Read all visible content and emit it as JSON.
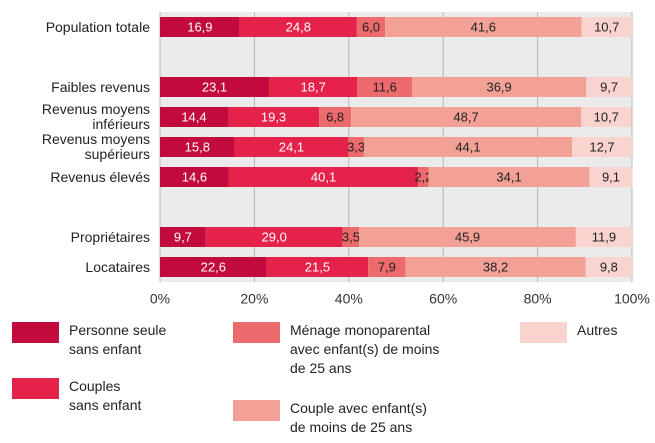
{
  "chart_data": {
    "type": "stacked-bar-horizontal",
    "categories": [
      "Population totale",
      null,
      "Faibles revenus",
      "Revenus moyens\ninférieurs",
      "Revenus moyens\nsupérieurs",
      "Revenus élevés",
      null,
      "Propriétaires",
      "Locataires"
    ],
    "series": [
      {
        "name": "Personne seule\nsans enfant",
        "color": "#c20a3c",
        "values": [
          16.9,
          null,
          23.1,
          14.4,
          15.8,
          14.6,
          null,
          9.7,
          22.6
        ],
        "value_labels": [
          "16,9",
          null,
          "23,1",
          "14,4",
          "15,8",
          "14,6",
          null,
          "9,7",
          "22,6"
        ]
      },
      {
        "name": "Couples\nsans enfant",
        "color": "#e5224a",
        "values": [
          24.8,
          null,
          18.7,
          19.3,
          24.1,
          40.1,
          null,
          29.0,
          21.5
        ],
        "value_labels": [
          "24,8",
          null,
          "18,7",
          "19,3",
          "24,1",
          "40,1",
          null,
          "29,0",
          "21,5"
        ]
      },
      {
        "name": "Ménage monoparental\navec enfant(s) de moins\nde 25 ans",
        "color": "#ec6a6c",
        "values": [
          6.0,
          null,
          11.6,
          6.8,
          3.3,
          2.2,
          null,
          3.5,
          7.9
        ],
        "value_labels": [
          "6,0",
          null,
          "11,6",
          "6,8",
          "3,3",
          "2,2",
          null,
          "3,5",
          "7,9"
        ]
      },
      {
        "name": "Couple avec enfant(s)\nde moins de 25 ans",
        "color": "#f3a096",
        "values": [
          41.6,
          null,
          36.9,
          48.7,
          44.1,
          34.1,
          null,
          45.9,
          38.2
        ],
        "value_labels": [
          "41,6",
          null,
          "36,9",
          "48,7",
          "44,1",
          "34,1",
          null,
          "45,9",
          "38,2"
        ]
      },
      {
        "name": "Autres",
        "color": "#f9d3ce",
        "values": [
          10.7,
          null,
          9.7,
          10.7,
          12.7,
          9.1,
          null,
          11.9,
          9.8
        ],
        "value_labels": [
          "10,7",
          null,
          "9,7",
          "10,7",
          "12,7",
          "9,1",
          null,
          "11,9",
          "9,8"
        ]
      }
    ],
    "xlim": [
      0,
      100
    ],
    "xticks": [
      {
        "value": 0,
        "label": "0%"
      },
      {
        "value": 20,
        "label": "20%"
      },
      {
        "value": 40,
        "label": "40%"
      },
      {
        "value": 60,
        "label": "60%"
      },
      {
        "value": 80,
        "label": "80%"
      },
      {
        "value": 100,
        "label": "100%"
      }
    ],
    "grid": true
  }
}
